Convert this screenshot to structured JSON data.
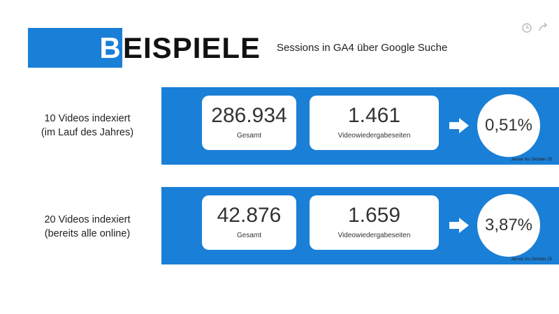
{
  "header": {
    "title_initial": "B",
    "title_rest": "EISPIELE",
    "subtitle": "Sessions in GA4 über Google Suche"
  },
  "rows": [
    {
      "label": [
        "10 Videos indexiert",
        "(im Lauf des Jahres)"
      ],
      "total": "286.934",
      "total_label": "Gesamt",
      "pages": "1.461",
      "pages_label": "Videowiedergabeseiten",
      "rate": "0,51%",
      "note": "Januar bis Oktober 25"
    },
    {
      "label": [
        "20 Videos indexiert",
        "(bereits alle online)"
      ],
      "total": "42.876",
      "total_label": "Gesamt",
      "pages": "1.659",
      "pages_label": "Videowiedergabeseiten",
      "rate": "3,87%",
      "note": "Januar bis Oktober 25"
    }
  ]
}
